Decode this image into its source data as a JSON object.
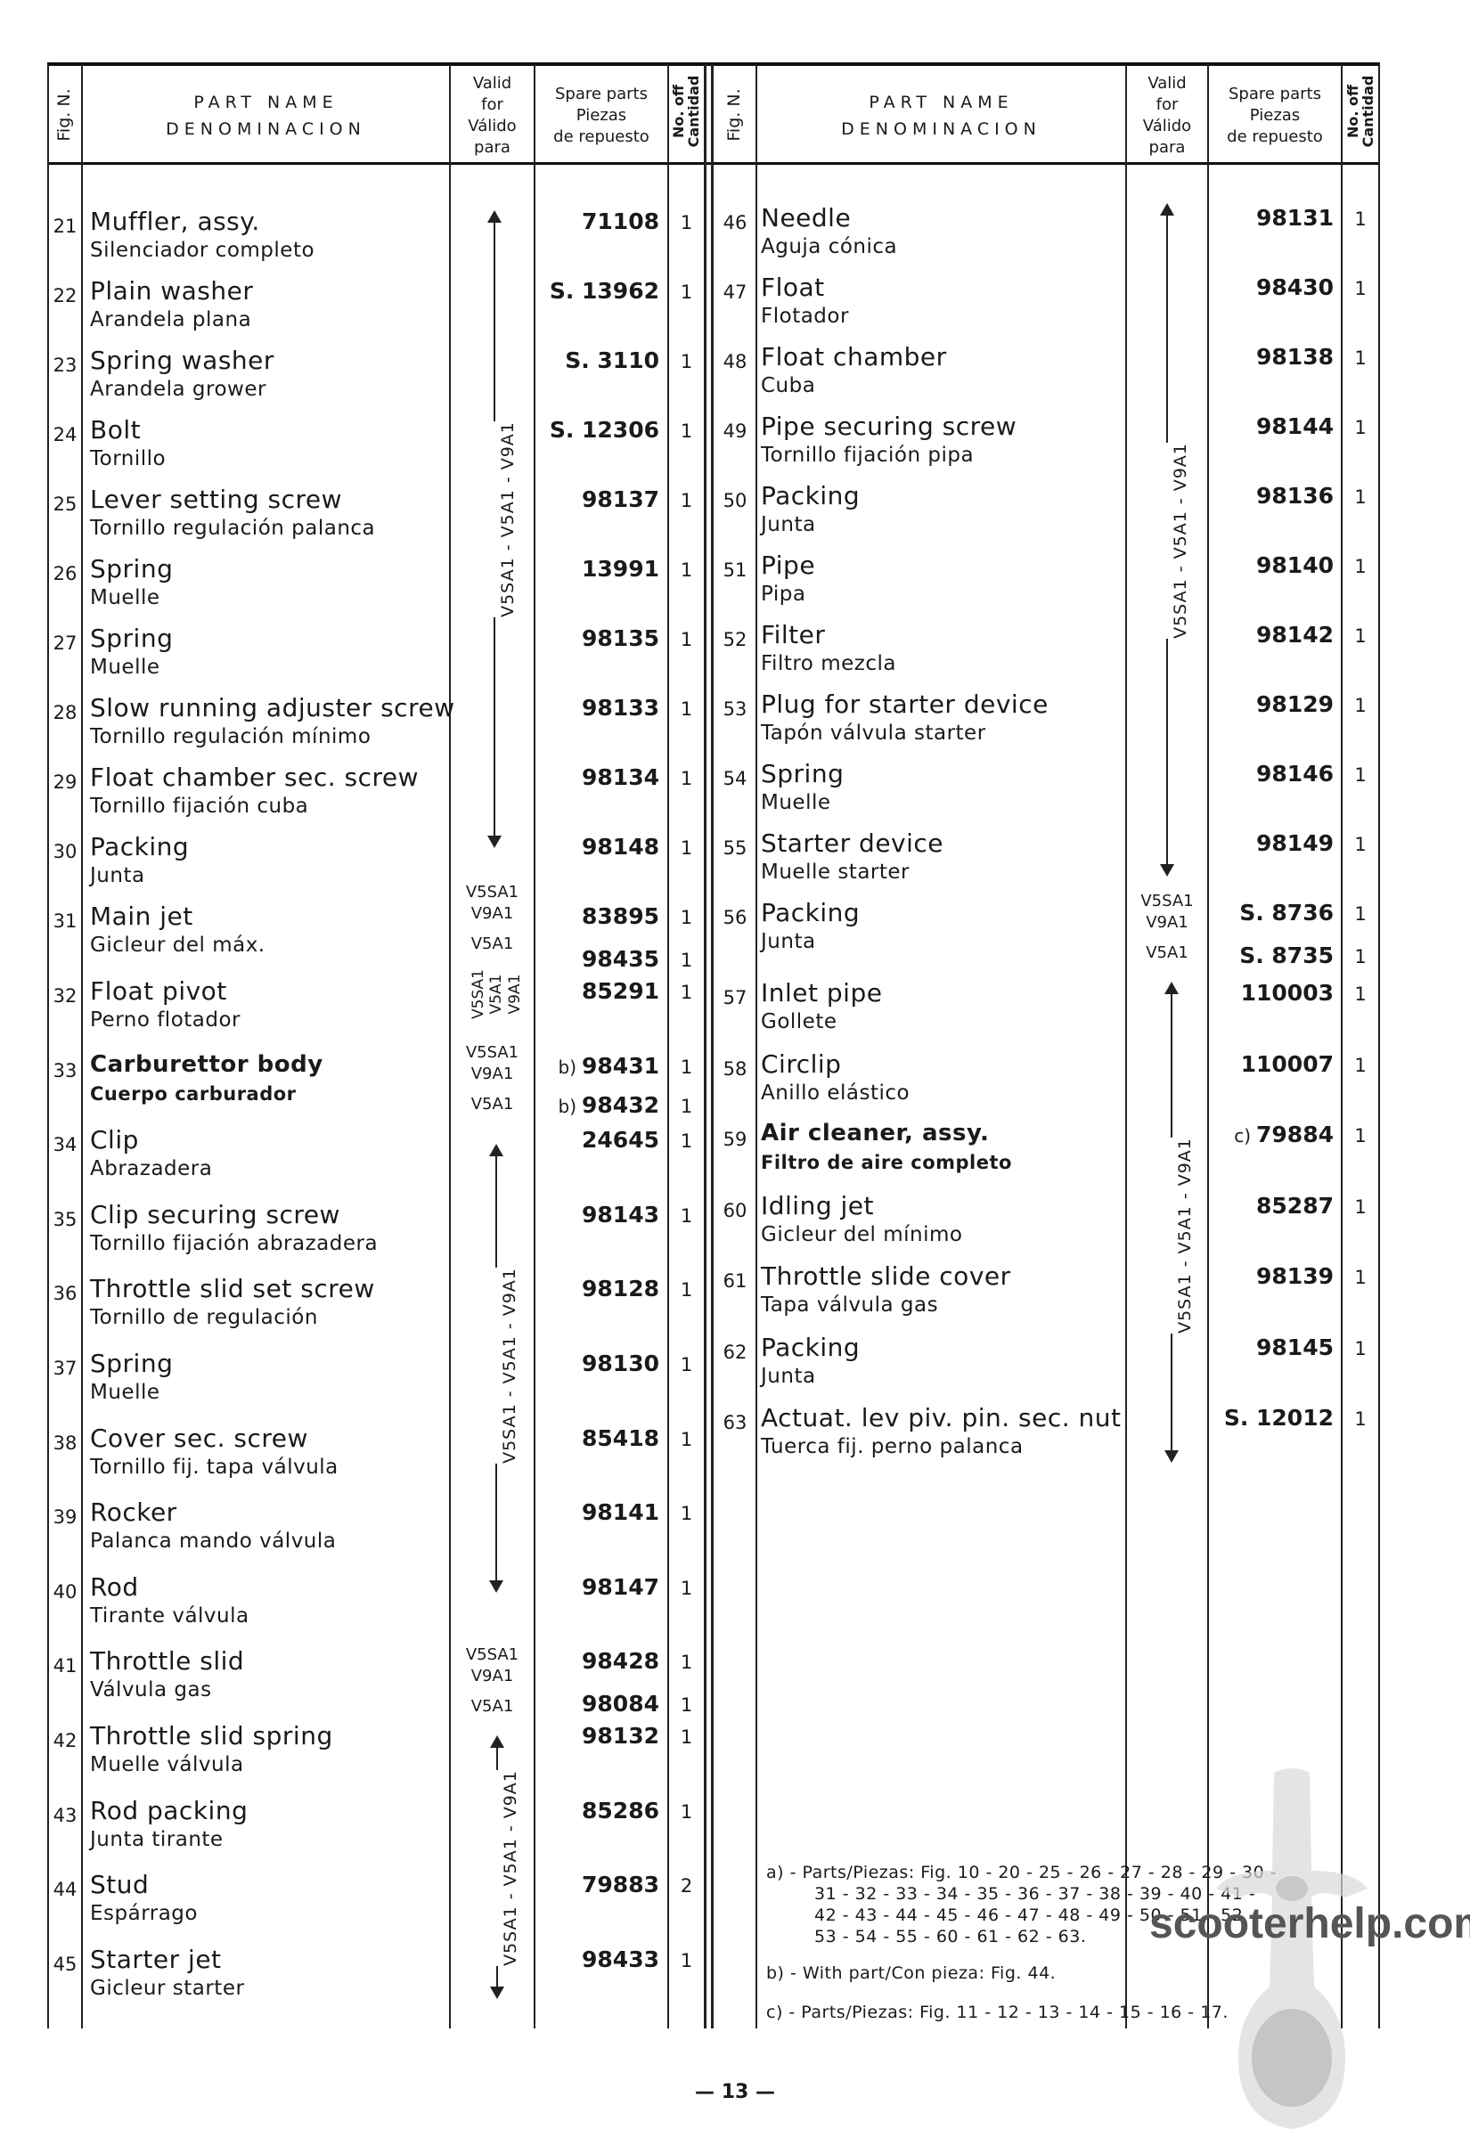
{
  "header": {
    "fig": "Fig. N.",
    "part_name": "PART NAME",
    "denominacion": "DENOMINACION",
    "valid": [
      "Valid",
      "for",
      "Válido",
      "para"
    ],
    "spare": [
      "Spare parts",
      "Piezas",
      "de repuesto"
    ],
    "qty": [
      "No. off",
      "Cantidad"
    ]
  },
  "left_rows": [
    {
      "fig": "21",
      "en": "Muffler, assy.",
      "es": "Silenciador completo",
      "parts": [
        {
          "code": "71108",
          "qty": "1"
        }
      ]
    },
    {
      "fig": "22",
      "en": "Plain washer",
      "es": "Arandela plana",
      "parts": [
        {
          "code": "S. 13962",
          "qty": "1"
        }
      ]
    },
    {
      "fig": "23",
      "en": "Spring washer",
      "es": "Arandela grower",
      "parts": [
        {
          "code": "S. 3110",
          "qty": "1"
        }
      ]
    },
    {
      "fig": "24",
      "en": "Bolt",
      "es": "Tornillo",
      "parts": [
        {
          "code": "S. 12306",
          "qty": "1"
        }
      ]
    },
    {
      "fig": "25",
      "en": "Lever setting screw",
      "es": "Tornillo regulación palanca",
      "parts": [
        {
          "code": "98137",
          "qty": "1"
        }
      ]
    },
    {
      "fig": "26",
      "en": "Spring",
      "es": "Muelle",
      "parts": [
        {
          "code": "13991",
          "qty": "1"
        }
      ]
    },
    {
      "fig": "27",
      "en": "Spring",
      "es": "Muelle",
      "parts": [
        {
          "code": "98135",
          "qty": "1"
        }
      ]
    },
    {
      "fig": "28",
      "en": "Slow running adjuster screw",
      "es": "Tornillo regulación mínimo",
      "parts": [
        {
          "code": "98133",
          "qty": "1"
        }
      ]
    },
    {
      "fig": "29",
      "en": "Float chamber sec. screw",
      "es": "Tornillo fijación cuba",
      "parts": [
        {
          "code": "98134",
          "qty": "1"
        }
      ]
    },
    {
      "fig": "30",
      "en": "Packing",
      "es": "Junta",
      "parts": [
        {
          "code": "98148",
          "qty": "1"
        }
      ]
    },
    {
      "fig": "31",
      "en": "Main jet",
      "es": "Gicleur del máx.",
      "parts": [
        {
          "code": "83895",
          "qty": "1"
        },
        {
          "code": "98435",
          "qty": "1"
        }
      ]
    },
    {
      "fig": "32",
      "en": "Float pivot",
      "es": "Perno flotador",
      "parts": [
        {
          "code": "85291",
          "qty": "1"
        }
      ]
    },
    {
      "fig": "33",
      "en": "Carburettor body",
      "es": "Cuerpo carburador",
      "bold": true,
      "parts": [
        {
          "prefix": "b)",
          "code": "98431",
          "qty": "1"
        },
        {
          "prefix": "b)",
          "code": "98432",
          "qty": "1"
        }
      ]
    },
    {
      "fig": "34",
      "en": "Clip",
      "es": "Abrazadera",
      "parts": [
        {
          "code": "24645",
          "qty": "1"
        }
      ]
    },
    {
      "fig": "35",
      "en": "Clip securing screw",
      "es": "Tornillo fijación abrazadera",
      "parts": [
        {
          "code": "98143",
          "qty": "1"
        }
      ]
    },
    {
      "fig": "36",
      "en": "Throttle slid set screw",
      "es": "Tornillo de regulación",
      "parts": [
        {
          "code": "98128",
          "qty": "1"
        }
      ]
    },
    {
      "fig": "37",
      "en": "Spring",
      "es": "Muelle",
      "parts": [
        {
          "code": "98130",
          "qty": "1"
        }
      ]
    },
    {
      "fig": "38",
      "en": "Cover sec. screw",
      "es": "Tornillo fij. tapa válvula",
      "parts": [
        {
          "code": "85418",
          "qty": "1"
        }
      ]
    },
    {
      "fig": "39",
      "en": "Rocker",
      "es": "Palanca mando válvula",
      "parts": [
        {
          "code": "98141",
          "qty": "1"
        }
      ]
    },
    {
      "fig": "40",
      "en": "Rod",
      "es": "Tirante válvula",
      "parts": [
        {
          "code": "98147",
          "qty": "1"
        }
      ]
    },
    {
      "fig": "41",
      "en": "Throttle slid",
      "es": "Válvula gas",
      "parts": [
        {
          "code": "98428",
          "qty": "1"
        },
        {
          "code": "98084",
          "qty": "1"
        }
      ]
    },
    {
      "fig": "42",
      "en": "Throttle slid spring",
      "es": "Muelle válvula",
      "parts": [
        {
          "code": "98132",
          "qty": "1"
        }
      ]
    },
    {
      "fig": "43",
      "en": "Rod packing",
      "es": "Junta tirante",
      "parts": [
        {
          "code": "85286",
          "qty": "1"
        }
      ]
    },
    {
      "fig": "44",
      "en": "Stud",
      "es": "Espárrago",
      "parts": [
        {
          "code": "79883",
          "qty": "2"
        }
      ]
    },
    {
      "fig": "45",
      "en": "Starter jet",
      "es": "Gicleur starter",
      "parts": [
        {
          "code": "98433",
          "qty": "1"
        }
      ]
    }
  ],
  "right_rows": [
    {
      "fig": "46",
      "en": "Needle",
      "es": "Aguja cónica",
      "parts": [
        {
          "code": "98131",
          "qty": "1"
        }
      ]
    },
    {
      "fig": "47",
      "en": "Float",
      "es": "Flotador",
      "parts": [
        {
          "code": "98430",
          "qty": "1"
        }
      ]
    },
    {
      "fig": "48",
      "en": "Float chamber",
      "es": "Cuba",
      "parts": [
        {
          "code": "98138",
          "qty": "1"
        }
      ]
    },
    {
      "fig": "49",
      "en": "Pipe securing screw",
      "es": "Tornillo fijación pipa",
      "parts": [
        {
          "code": "98144",
          "qty": "1"
        }
      ]
    },
    {
      "fig": "50",
      "en": "Packing",
      "es": "Junta",
      "parts": [
        {
          "code": "98136",
          "qty": "1"
        }
      ]
    },
    {
      "fig": "51",
      "en": "Pipe",
      "es": "Pipa",
      "parts": [
        {
          "code": "98140",
          "qty": "1"
        }
      ]
    },
    {
      "fig": "52",
      "en": "Filter",
      "es": "Filtro mezcla",
      "parts": [
        {
          "code": "98142",
          "qty": "1"
        }
      ]
    },
    {
      "fig": "53",
      "en": "Plug for starter device",
      "es": "Tapón válvula starter",
      "parts": [
        {
          "code": "98129",
          "qty": "1"
        }
      ]
    },
    {
      "fig": "54",
      "en": "Spring",
      "es": "Muelle",
      "parts": [
        {
          "code": "98146",
          "qty": "1"
        }
      ]
    },
    {
      "fig": "55",
      "en": "Starter device",
      "es": "Muelle starter",
      "parts": [
        {
          "code": "98149",
          "qty": "1"
        }
      ]
    },
    {
      "fig": "56",
      "en": "Packing",
      "es": "Junta",
      "parts": [
        {
          "code": "S. 8736",
          "qty": "1"
        },
        {
          "code": "S. 8735",
          "qty": "1"
        }
      ]
    },
    {
      "fig": "57",
      "en": "Inlet pipe",
      "es": "Gollete",
      "parts": [
        {
          "code": "110003",
          "qty": "1"
        }
      ]
    },
    {
      "fig": "58",
      "en": "Circlip",
      "es": "Anillo elástico",
      "parts": [
        {
          "code": "110007",
          "qty": "1"
        }
      ]
    },
    {
      "fig": "59",
      "en": "Air cleaner, assy.",
      "es": "Filtro de aire completo",
      "bold": true,
      "parts": [
        {
          "prefix": "c)",
          "code": "79884",
          "qty": "1"
        }
      ]
    },
    {
      "fig": "60",
      "en": "Idling jet",
      "es": "Gicleur del mínimo",
      "parts": [
        {
          "code": "85287",
          "qty": "1"
        }
      ]
    },
    {
      "fig": "61",
      "en": "Throttle slide cover",
      "es": "Tapa válvula gas",
      "parts": [
        {
          "code": "98139",
          "qty": "1"
        }
      ]
    },
    {
      "fig": "62",
      "en": "Packing",
      "es": "Junta",
      "parts": [
        {
          "code": "98145",
          "qty": "1"
        }
      ]
    },
    {
      "fig": "63",
      "en": "Actuat. lev piv. pin. sec. nut",
      "es": "Tuerca fij. perno palanca",
      "parts": [
        {
          "code": "S. 12012",
          "qty": "1"
        }
      ]
    }
  ],
  "validity": {
    "range": "V5SA1 - V5A1 - V9A1",
    "pair": "V5SA1",
    "pair2": "V9A1",
    "single": "V5A1",
    "short": [
      "V5SA1",
      "V5A1",
      "V9A1"
    ]
  },
  "footnotes": {
    "a_lines": [
      "a) - Parts/Piezas: Fig. 10 - 20 - 25 - 26 - 27 - 28 - 29 - 30 -",
      "31 - 32 - 33 - 34 - 35 - 36 - 37 - 38 - 39 - 40 - 41 -",
      "42 - 43 - 44 - 45 - 46 - 47 - 48 - 49 - 50 - 51 - 52 -",
      "53 - 54 - 55 - 60 - 61 - 62 - 63."
    ],
    "b": "b) - With part/Con pieza: Fig. 44.",
    "c": "c) - Parts/Piezas: Fig. 11 - 12 - 13 - 14 - 15 - 16 - 17."
  },
  "watermark": "scooterhelp.com",
  "page_number": "— 13 —"
}
